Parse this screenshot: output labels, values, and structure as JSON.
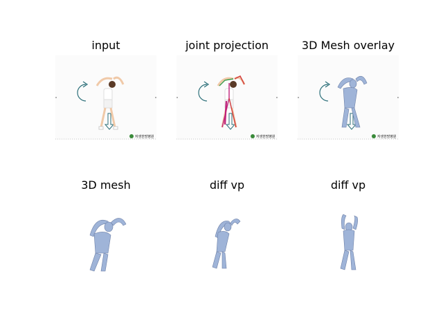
{
  "panels": [
    {
      "title": "input"
    },
    {
      "title": "joint projection"
    },
    {
      "title": "3D Mesh overlay"
    },
    {
      "title": "3D mesh"
    },
    {
      "title": "diff vp"
    },
    {
      "title": "diff vp"
    }
  ],
  "watermark": "자생한방병원",
  "colors": {
    "mesh": "#9fb4d8",
    "mesh_shadow": "#6c7fa6",
    "arrow": "#2c6f79",
    "skeleton_magenta": "#c0207a",
    "skeleton_red": "#d23a3a",
    "skeleton_green": "#3a9a4a"
  }
}
